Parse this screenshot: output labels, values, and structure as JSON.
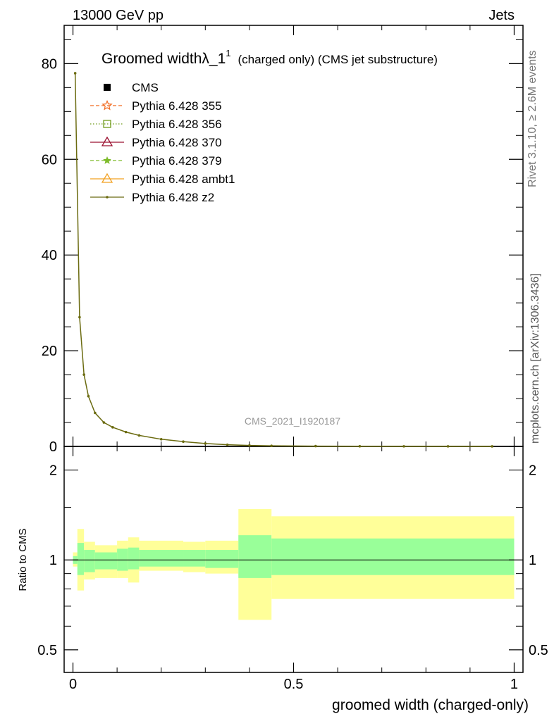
{
  "header": {
    "left": "13000 GeV pp",
    "right": "Jets"
  },
  "side_labels": {
    "rivet": "Rivet 3.1.10, ≥ 2.6M events",
    "mcplots": "mcplots.cern.ch [arXiv:1306.3436]"
  },
  "main": {
    "title": "Groomed width",
    "title_symbol": "λ_1",
    "title_superscript": "1",
    "title_suffix": "(charged only) (CMS jet substructure)",
    "watermark": "CMS_2021_I1920187"
  },
  "legend": [
    {
      "label": "CMS",
      "color": "#000000",
      "marker": "square",
      "line": "none"
    },
    {
      "label": "Pythia 6.428 355",
      "color": "#f26b21",
      "marker": "star-open",
      "line": "dashed"
    },
    {
      "label": "Pythia 6.428 356",
      "color": "#6f9a1a",
      "marker": "square-open",
      "line": "dotted"
    },
    {
      "label": "Pythia 6.428 370",
      "color": "#9b1030",
      "marker": "triangle-open",
      "line": "solid"
    },
    {
      "label": "Pythia 6.428 379",
      "color": "#7dbb2a",
      "marker": "star",
      "line": "dashed"
    },
    {
      "label": "Pythia 6.428 ambt1",
      "color": "#f2a122",
      "marker": "triangle-open",
      "line": "solid"
    },
    {
      "label": "Pythia 6.428 z2",
      "color": "#6b6b10",
      "marker": "dot",
      "line": "solid"
    }
  ],
  "chart_data": [
    {
      "type": "line",
      "panel": "main",
      "x": [
        0.005,
        0.015,
        0.025,
        0.035,
        0.05,
        0.07,
        0.09,
        0.12,
        0.15,
        0.2,
        0.25,
        0.3,
        0.35,
        0.4,
        0.45,
        0.55,
        0.65,
        0.75,
        0.85,
        0.95
      ],
      "series": [
        {
          "name": "Pythia 6.428 z2",
          "values": [
            78,
            27,
            15,
            10.5,
            7,
            5,
            4,
            3,
            2.3,
            1.5,
            1.0,
            0.6,
            0.35,
            0.2,
            0.12,
            0.06,
            0.03,
            0.02,
            0.01,
            0.005
          ]
        }
      ],
      "yticks": [
        0,
        20,
        40,
        60,
        80
      ],
      "ylim": [
        0,
        88
      ],
      "xlim": [
        -0.02,
        1.02
      ],
      "xlabel": "",
      "ylabel": ""
    },
    {
      "type": "area",
      "panel": "ratio",
      "ylabel": "Ratio to CMS",
      "xlabel": "groomed width (charged-only)",
      "log_y": true,
      "ylim": [
        0.42,
        2.4
      ],
      "xlim": [
        -0.02,
        1.02
      ],
      "xticks": [
        0,
        0.5,
        1
      ],
      "xtick_labels": [
        "0",
        "0.5",
        "1"
      ],
      "yticks": [
        0.5,
        1,
        2
      ],
      "ytick_labels": [
        "0.5",
        "1",
        "2"
      ],
      "reference": 1,
      "bins": [
        {
          "x": [
            0.0,
            0.01
          ],
          "inner": [
            0.97,
            1.03
          ],
          "outer": [
            0.95,
            1.06
          ]
        },
        {
          "x": [
            0.01,
            0.025
          ],
          "inner": [
            0.89,
            1.14
          ],
          "outer": [
            0.79,
            1.27
          ]
        },
        {
          "x": [
            0.025,
            0.05
          ],
          "inner": [
            0.91,
            1.08
          ],
          "outer": [
            0.86,
            1.15
          ]
        },
        {
          "x": [
            0.05,
            0.1
          ],
          "inner": [
            0.93,
            1.06
          ],
          "outer": [
            0.87,
            1.12
          ]
        },
        {
          "x": [
            0.1,
            0.125
          ],
          "inner": [
            0.92,
            1.09
          ],
          "outer": [
            0.87,
            1.16
          ]
        },
        {
          "x": [
            0.125,
            0.15
          ],
          "inner": [
            0.93,
            1.1
          ],
          "outer": [
            0.84,
            1.19
          ]
        },
        {
          "x": [
            0.15,
            0.25
          ],
          "inner": [
            0.95,
            1.08
          ],
          "outer": [
            0.92,
            1.16
          ]
        },
        {
          "x": [
            0.25,
            0.3
          ],
          "inner": [
            0.95,
            1.08
          ],
          "outer": [
            0.91,
            1.15
          ]
        },
        {
          "x": [
            0.3,
            0.375
          ],
          "inner": [
            0.94,
            1.08
          ],
          "outer": [
            0.9,
            1.16
          ]
        },
        {
          "x": [
            0.375,
            0.45
          ],
          "inner": [
            0.87,
            1.21
          ],
          "outer": [
            0.63,
            1.48
          ]
        },
        {
          "x": [
            0.45,
            1.0
          ],
          "inner": [
            0.89,
            1.18
          ],
          "outer": [
            0.74,
            1.4
          ]
        }
      ],
      "band_colors": {
        "inner": "#99ff99",
        "outer": "#ffff99"
      }
    }
  ]
}
